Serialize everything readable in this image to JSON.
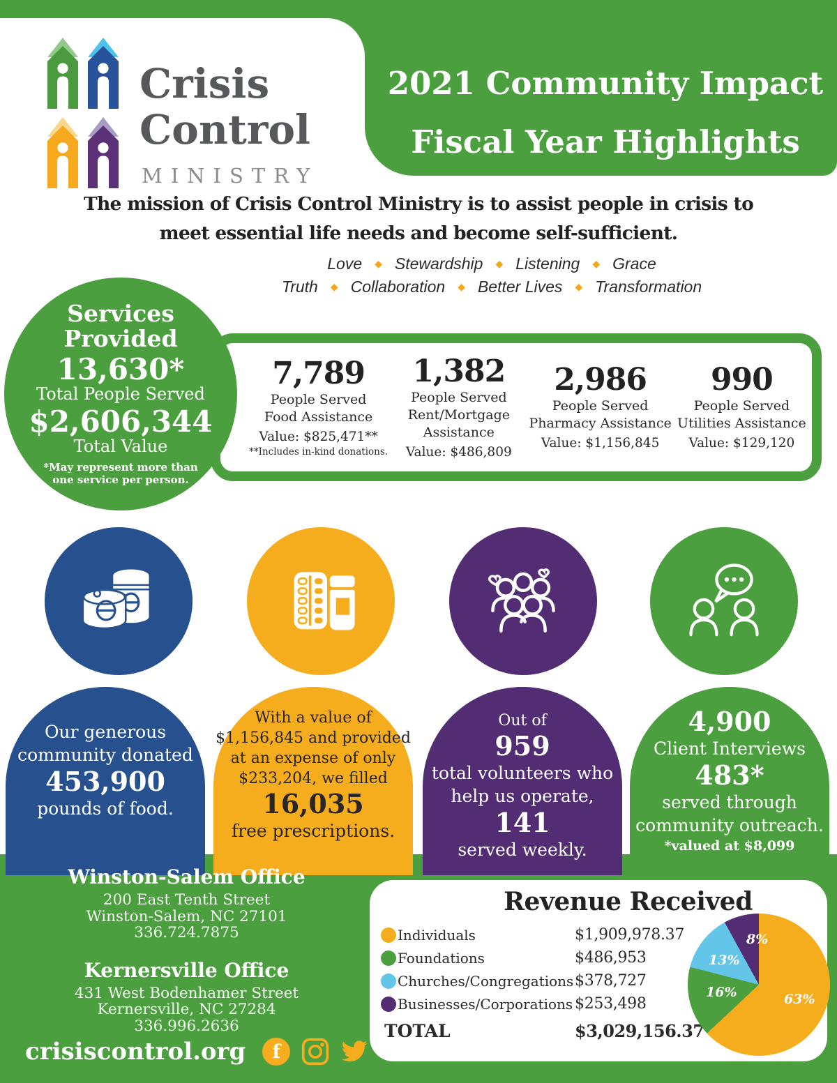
{
  "colors": {
    "green": "#4c9f3f",
    "blue": "#27508f",
    "yellow": "#f5ad1d",
    "purple": "#522d73",
    "lightblue": "#63c5e8"
  },
  "header": {
    "logo": {
      "word1": "Crisis",
      "word2": "Control",
      "word3": "MINISTRY",
      "houses": [
        {
          "body": "#4a9b3e",
          "roof": "#93c98b"
        },
        {
          "body": "#28539b",
          "roof": "#4cc3ea"
        },
        {
          "body": "#f6a91c",
          "roof": "#fbd78e"
        },
        {
          "body": "#5c3178",
          "roof": "#a99cc4"
        }
      ]
    },
    "title_line1": "2021 Community Impact",
    "title_line2": "Fiscal Year Highlights"
  },
  "mission": {
    "line1": "The mission of Crisis Control Ministry is to assist people in crisis to",
    "line2": "meet essential life needs and become self-sufficient."
  },
  "values": {
    "row1": [
      "Love",
      "Stewardship",
      "Listening",
      "Grace"
    ],
    "row2": [
      "Truth",
      "Collaboration",
      "Better Lives",
      "Transformation"
    ],
    "diamond": "◆"
  },
  "services": {
    "badge": {
      "title_l1": "Services",
      "title_l2": "Provided",
      "big1": "13,630*",
      "label1": "Total People Served",
      "big2": "$2,606,344",
      "label2": "Total Value",
      "foot_l1": "*May represent more than",
      "foot_l2": "one service per person."
    },
    "stats": [
      {
        "number": "7,789",
        "labels": [
          "People Served",
          "Food Assistance"
        ],
        "value": "Value: $825,471**",
        "footnote": "**Includes in-kind donations."
      },
      {
        "number": "1,382",
        "labels": [
          "People Served",
          "Rent/Mortgage",
          "Assistance"
        ],
        "value": "Value: $486,809",
        "footnote": ""
      },
      {
        "number": "2,986",
        "labels": [
          "People Served",
          "Pharmacy Assistance"
        ],
        "value": "Value: $1,156,845",
        "footnote": ""
      },
      {
        "number": "990",
        "labels": [
          "People Served",
          "Utilities Assistance"
        ],
        "value": "Value: $129,120",
        "footnote": ""
      }
    ]
  },
  "highlights": [
    {
      "icon": "canned-food-icon",
      "color_key": "blue",
      "text_color": "#ffffff",
      "pad": 48,
      "lines": [
        {
          "t": "Our generous",
          "s": "n"
        },
        {
          "t": "community donated",
          "s": "n"
        },
        {
          "t": "453,900",
          "s": "big"
        },
        {
          "t": "pounds of food.",
          "s": "n"
        }
      ]
    },
    {
      "icon": "prescriptions-icon",
      "color_key": "yellow",
      "text_color": "#2a2526",
      "pad": 30,
      "lines": [
        {
          "t": "With a value of",
          "s": "sm"
        },
        {
          "t": "$1,156,845 and provided",
          "s": "sm"
        },
        {
          "t": "at an expense of only",
          "s": "sm"
        },
        {
          "t": "$233,204, we filled",
          "s": "sm"
        },
        {
          "t": "16,035",
          "s": "big"
        },
        {
          "t": "free prescriptions.",
          "s": "n"
        }
      ]
    },
    {
      "icon": "volunteers-icon",
      "color_key": "purple",
      "text_color": "#ffffff",
      "pad": 34,
      "lines": [
        {
          "t": "Out of",
          "s": "sm"
        },
        {
          "t": "959",
          "s": "big"
        },
        {
          "t": "total volunteers who",
          "s": "n"
        },
        {
          "t": "help us operate,",
          "s": "n"
        },
        {
          "t": "141",
          "s": "big"
        },
        {
          "t": "served weekly.",
          "s": "n"
        }
      ]
    },
    {
      "icon": "client-interviews-icon",
      "color_key": "green",
      "text_color": "#ffffff",
      "pad": 28,
      "lines": [
        {
          "t": "4,900",
          "s": "big"
        },
        {
          "t": "Client Interviews",
          "s": "n"
        },
        {
          "t": "483*",
          "s": "big"
        },
        {
          "t": "served through",
          "s": "n"
        },
        {
          "t": "community outreach.",
          "s": "n"
        },
        {
          "t": "*valued at $8,099",
          "s": "smb"
        }
      ]
    }
  ],
  "footer": {
    "offices": [
      {
        "name": "Winston-Salem Office",
        "lines": [
          "200 East Tenth Street",
          "Winston-Salem, NC 27101",
          "336.724.7875"
        ]
      },
      {
        "name": "Kernersville Office",
        "lines": [
          "431 West Bodenhamer Street",
          "Kernersville, NC 27284",
          "336.996.2636"
        ]
      }
    ],
    "website": "crisiscontrol.org",
    "social": [
      "facebook",
      "instagram",
      "twitter"
    ]
  },
  "revenue": {
    "title": "Revenue Received",
    "rows": [
      {
        "label": "Individuals",
        "value": "$1,909,978.37",
        "color_key": "yellow"
      },
      {
        "label": "Foundations",
        "value": "$486,953",
        "color_key": "green"
      },
      {
        "label": "Churches/Congregations",
        "value": "$378,727",
        "color_key": "lightblue"
      },
      {
        "label": "Businesses/Corporations",
        "value": "$253,498",
        "color_key": "purple"
      }
    ],
    "total_label": "TOTAL",
    "total_value": "$3,029,156.37"
  },
  "chart_data": {
    "type": "pie",
    "title": "Revenue Received",
    "labels": [
      "Individuals",
      "Foundations",
      "Churches/Congregations",
      "Businesses/Corporations"
    ],
    "values": [
      1909978.37,
      486953,
      378727,
      253498
    ],
    "percents": [
      63,
      16,
      13,
      8
    ],
    "percent_labels": [
      "63%",
      "16%",
      "13%",
      "8%"
    ],
    "colors": [
      "#f5ad1d",
      "#4c9f3f",
      "#63c5e8",
      "#522d73"
    ],
    "total": 3029156.37,
    "legend_position": "left",
    "slice_order": "clockwise-from-top"
  }
}
